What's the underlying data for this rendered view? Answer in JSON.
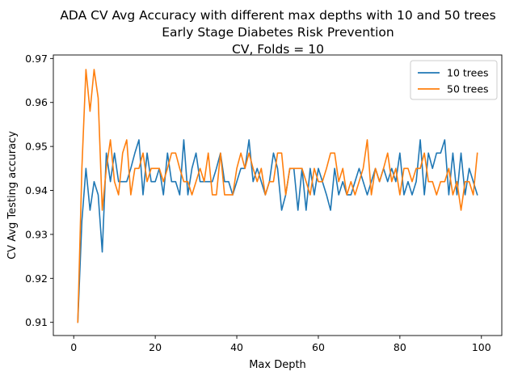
{
  "chart_data": {
    "type": "line",
    "title": "ADA CV Avg Accuracy with different max depths with 10 and 50 trees",
    "subtitle_lines": [
      "Early Stage Diabetes Risk Prevention",
      "CV, Folds = 10"
    ],
    "xlabel": "Max Depth",
    "ylabel": "CV Avg Testing accuracy",
    "xlim": [
      -5,
      105
    ],
    "ylim": [
      0.907,
      0.9708
    ],
    "xticks": [
      0,
      20,
      40,
      60,
      80,
      100
    ],
    "xtick_labels": [
      "0",
      "20",
      "40",
      "60",
      "80",
      "100"
    ],
    "yticks": [
      0.91,
      0.92,
      0.93,
      0.94,
      0.95,
      0.96,
      0.97
    ],
    "ytick_labels": [
      "0.91",
      "0.92",
      "0.93",
      "0.94",
      "0.95",
      "0.96",
      "0.97"
    ],
    "grid": false,
    "legend_position": "top-right",
    "x": [
      1,
      2,
      3,
      4,
      5,
      6,
      7,
      8,
      9,
      10,
      11,
      12,
      13,
      14,
      15,
      16,
      17,
      18,
      19,
      20,
      21,
      22,
      23,
      24,
      25,
      26,
      27,
      28,
      29,
      30,
      31,
      32,
      33,
      34,
      35,
      36,
      37,
      38,
      39,
      40,
      41,
      42,
      43,
      44,
      45,
      46,
      47,
      48,
      49,
      50,
      51,
      52,
      53,
      54,
      55,
      56,
      57,
      58,
      59,
      60,
      61,
      62,
      63,
      64,
      65,
      66,
      67,
      68,
      69,
      70,
      71,
      72,
      73,
      74,
      75,
      76,
      77,
      78,
      79,
      80,
      81,
      82,
      83,
      84,
      85,
      86,
      87,
      88,
      89,
      90,
      91,
      92,
      93,
      94,
      95,
      96,
      97,
      98,
      99
    ],
    "series": [
      {
        "name": "10 trees",
        "color": "#1f77b4",
        "values": [
          0.91,
          0.933,
          0.945,
          0.9355,
          0.942,
          0.939,
          0.926,
          0.9485,
          0.942,
          0.9485,
          0.942,
          0.942,
          0.942,
          0.945,
          0.9485,
          0.9515,
          0.939,
          0.9485,
          0.942,
          0.942,
          0.945,
          0.939,
          0.9485,
          0.942,
          0.942,
          0.939,
          0.9515,
          0.939,
          0.945,
          0.9485,
          0.942,
          0.942,
          0.942,
          0.942,
          0.945,
          0.9485,
          0.942,
          0.942,
          0.939,
          0.942,
          0.945,
          0.945,
          0.9515,
          0.942,
          0.945,
          0.942,
          0.939,
          0.942,
          0.9485,
          0.945,
          0.9355,
          0.939,
          0.945,
          0.945,
          0.9355,
          0.945,
          0.9355,
          0.945,
          0.939,
          0.945,
          0.942,
          0.939,
          0.9355,
          0.945,
          0.939,
          0.942,
          0.939,
          0.939,
          0.942,
          0.945,
          0.942,
          0.939,
          0.942,
          0.945,
          0.942,
          0.945,
          0.942,
          0.945,
          0.942,
          0.9485,
          0.939,
          0.942,
          0.939,
          0.942,
          0.9515,
          0.939,
          0.9485,
          0.945,
          0.9485,
          0.9485,
          0.9515,
          0.939,
          0.9485,
          0.939,
          0.9485,
          0.939,
          0.945,
          0.942,
          0.939
        ]
      },
      {
        "name": "50 trees",
        "color": "#ff7f0e",
        "values": [
          0.91,
          0.945,
          0.9675,
          0.958,
          0.9675,
          0.961,
          0.9355,
          0.945,
          0.9515,
          0.942,
          0.939,
          0.9485,
          0.9515,
          0.939,
          0.945,
          0.945,
          0.9485,
          0.942,
          0.945,
          0.945,
          0.945,
          0.942,
          0.945,
          0.9485,
          0.9485,
          0.945,
          0.942,
          0.942,
          0.939,
          0.942,
          0.945,
          0.942,
          0.9485,
          0.939,
          0.939,
          0.9485,
          0.939,
          0.939,
          0.939,
          0.945,
          0.9485,
          0.945,
          0.9485,
          0.945,
          0.942,
          0.945,
          0.939,
          0.942,
          0.942,
          0.9485,
          0.9485,
          0.939,
          0.945,
          0.945,
          0.945,
          0.945,
          0.942,
          0.939,
          0.945,
          0.942,
          0.942,
          0.945,
          0.9485,
          0.9485,
          0.942,
          0.945,
          0.939,
          0.942,
          0.939,
          0.942,
          0.945,
          0.9515,
          0.939,
          0.945,
          0.942,
          0.945,
          0.9485,
          0.942,
          0.945,
          0.939,
          0.945,
          0.945,
          0.942,
          0.945,
          0.945,
          0.9485,
          0.942,
          0.942,
          0.939,
          0.942,
          0.942,
          0.945,
          0.939,
          0.942,
          0.9355,
          0.942,
          0.942,
          0.939,
          0.9485
        ]
      }
    ]
  }
}
